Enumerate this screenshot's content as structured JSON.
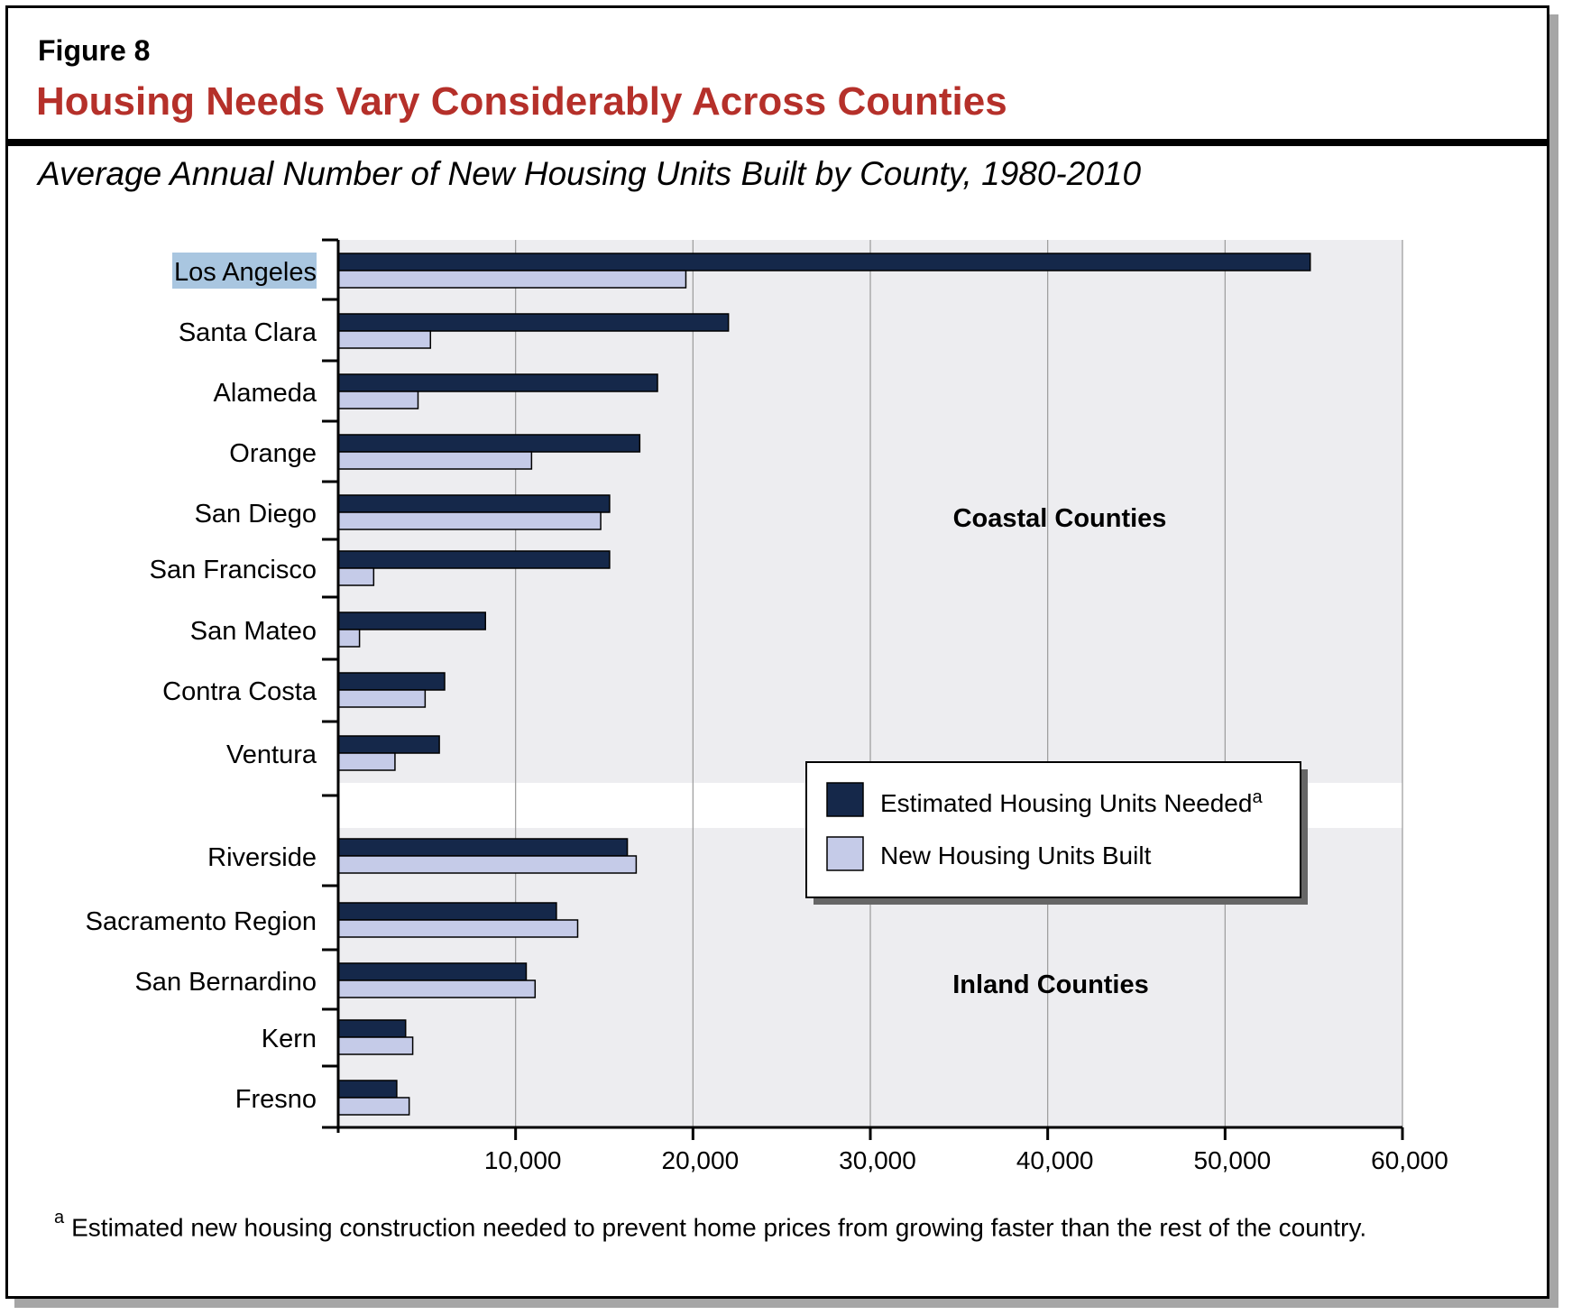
{
  "figure": {
    "label": "Figure 8",
    "title": "Housing Needs Vary Considerably Across Counties",
    "subtitle": "Average Annual Number of New Housing Units Built by County, 1980-2010",
    "footnote_marker": "a",
    "footnote": "Estimated new housing construction needed to prevent home prices from growing faster than the rest of the country."
  },
  "colors": {
    "needed": "#15284a",
    "built": "#c5cbe8",
    "plot_bg": "#ededf0",
    "title_red": "#b5302a",
    "highlight": "#a9c6e0"
  },
  "chart_data": {
    "type": "bar",
    "orientation": "horizontal",
    "xlim": [
      0,
      60000
    ],
    "xticks": [
      10000,
      20000,
      30000,
      40000,
      50000,
      60000
    ],
    "xtick_labels": [
      "10,000",
      "20,000",
      "30,000",
      "40,000",
      "50,000",
      "60,000"
    ],
    "grid": true,
    "legend": {
      "placement": "center-right",
      "needed_label": "Estimated Housing Units Needed",
      "needed_sup": "a",
      "built_label": "New Housing Units Built"
    },
    "groups": [
      {
        "name": "Coastal Counties",
        "categories": [
          "Los Angeles",
          "Santa Clara",
          "Alameda",
          "Orange",
          "San Diego",
          "San Francisco",
          "San Mateo",
          "Contra Costa",
          "Ventura"
        ],
        "series": [
          {
            "name": "Estimated Housing Units Needed",
            "values": [
              54800,
              22000,
              18000,
              17000,
              15300,
              15300,
              8300,
              6000,
              5700
            ]
          },
          {
            "name": "New Housing Units Built",
            "values": [
              19600,
              5200,
              4500,
              10900,
              14800,
              2000,
              1200,
              4900,
              3200
            ]
          }
        ]
      },
      {
        "name": "Inland Counties",
        "categories": [
          "Riverside",
          "Sacramento Region",
          "San Bernardino",
          "Kern",
          "Fresno"
        ],
        "series": [
          {
            "name": "Estimated Housing Units Needed",
            "values": [
              16300,
              12300,
              10600,
              3800,
              3300
            ]
          },
          {
            "name": "New Housing Units Built",
            "values": [
              16800,
              13500,
              11100,
              4200,
              4000
            ]
          }
        ]
      }
    ],
    "highlighted_category": "Los Angeles"
  }
}
